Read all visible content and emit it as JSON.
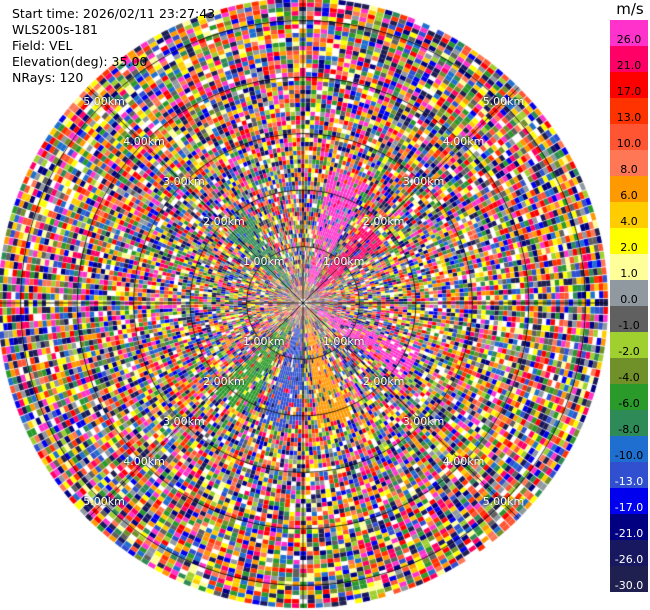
{
  "info": {
    "start_time": "Start time: 2026/02/11 23:27:43",
    "instrument": "WLS200s-181",
    "field": "Field: VEL",
    "elevation": "Elevation(deg): 35.00",
    "nrays": "NRays: 120"
  },
  "chart_data": {
    "type": "heatmap",
    "subtype": "polar-ppi",
    "title": "",
    "field": "VEL",
    "elevation_deg": 35.0,
    "n_rays": 120,
    "range_rings_km": [
      1.0,
      2.0,
      3.0,
      4.0,
      5.0
    ],
    "ring_labels": [
      "1.00km",
      "2.00km",
      "3.00km",
      "4.00km",
      "5.00km"
    ],
    "max_range_km": 5.4,
    "colorbar": {
      "unit": "m/s",
      "ticks": [
        "26.0",
        "21.0",
        "17.0",
        "13.0",
        "10.0",
        "8.0",
        "6.0",
        "4.0",
        "2.0",
        "1.0",
        "0.0",
        "-1.0",
        "-2.0",
        "-4.0",
        "-6.0",
        "-8.0",
        "-10.0",
        "-13.0",
        "-17.0",
        "-21.0",
        "-26.0",
        "-30.0"
      ],
      "colors": [
        "#ff33cc",
        "#ff0066",
        "#ff0000",
        "#ff3300",
        "#ff5533",
        "#ff7755",
        "#ff9900",
        "#ffcc00",
        "#ffff00",
        "#ffff99",
        "#9099a0",
        "#606060",
        "#a0d030",
        "#70902a",
        "#2a9a2a",
        "#2e8b57",
        "#1f6fd0",
        "#3050d0",
        "#0000ee",
        "#000080",
        "#181860",
        "#202050"
      ]
    },
    "near_field_velocity_summary": [
      {
        "azimuth_deg": 20,
        "range_km": [
          0.4,
          2.4
        ],
        "value_ms": 26.0
      },
      {
        "azimuth_deg": 45,
        "range_km": [
          0.4,
          1.8
        ],
        "value_ms": 21.0
      },
      {
        "azimuth_deg": 120,
        "range_km": [
          0.3,
          2.2
        ],
        "value_ms": 26.0
      },
      {
        "azimuth_deg": 165,
        "range_km": [
          0.4,
          2.2
        ],
        "value_ms": 6.0
      },
      {
        "azimuth_deg": 190,
        "range_km": [
          0.4,
          2.2
        ],
        "value_ms": -13.0
      },
      {
        "azimuth_deg": 215,
        "range_km": [
          0.4,
          2.2
        ],
        "value_ms": -6.0
      },
      {
        "azimuth_deg": 320,
        "range_km": [
          0.4,
          1.8
        ],
        "value_ms": -8.0
      }
    ]
  }
}
